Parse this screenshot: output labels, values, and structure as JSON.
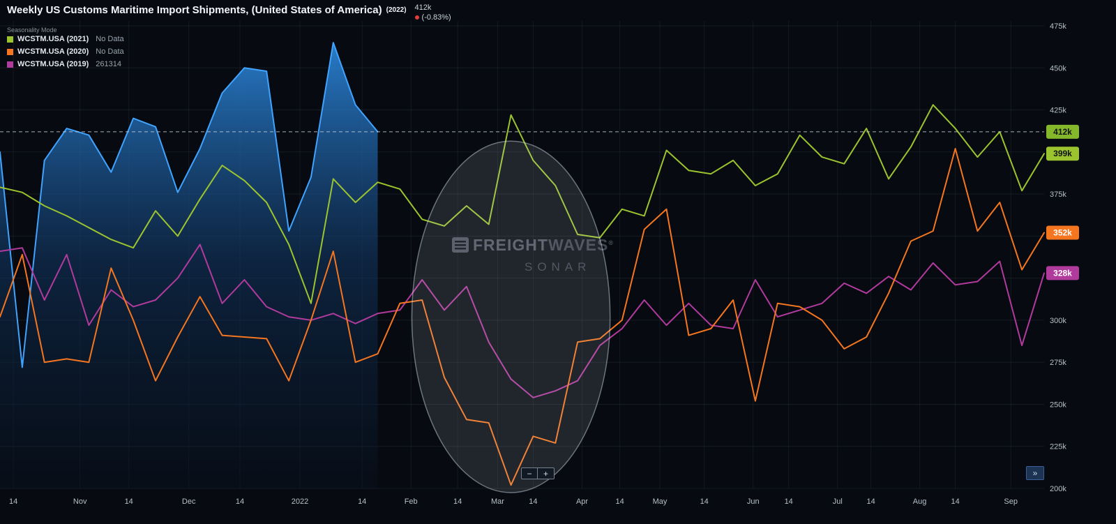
{
  "header": {
    "title": "Weekly US Customs Maritime Import Shipments, (United States of America)",
    "title_suffix": "(2022)",
    "value": "412k",
    "change": "(-0.83%)",
    "mode_label": "Seasonality Mode"
  },
  "legend": [
    {
      "name": "WCSTM.USA (2021)",
      "value": "No Data",
      "color": "#9cc42e"
    },
    {
      "name": "WCSTM.USA (2020)",
      "value": "No Data",
      "color": "#f5761f"
    },
    {
      "name": "WCSTM.USA (2019)",
      "value": "261314",
      "color": "#b13a9d"
    }
  ],
  "watermark": {
    "brand_bold": "FREIGHT",
    "brand_light": "WAVES",
    "trademark": "®",
    "sub": "SONAR"
  },
  "controls": {
    "zoom_out_label": "−",
    "zoom_in_label": "+",
    "expand_label": "»"
  },
  "chart_data": {
    "type": "line",
    "title": "Weekly US Customs Maritime Import Shipments, (United States of America)",
    "x_unit": "weeks (Oct 2021 - Sep 2022 season axis)",
    "x_points": 48,
    "ylim": [
      200,
      475
    ],
    "y_unit": "k shipments",
    "grid": true,
    "legend_position": "top-left",
    "y_grid": [
      200,
      225,
      250,
      275,
      300,
      325,
      350,
      375,
      400,
      425,
      450,
      475
    ],
    "y_tick_labels": [
      [
        475,
        "475k"
      ],
      [
        450,
        "450k"
      ],
      [
        425,
        "425k"
      ],
      [
        375,
        "375k"
      ],
      [
        300,
        "300k"
      ],
      [
        275,
        "275k"
      ],
      [
        250,
        "250k"
      ],
      [
        225,
        "225k"
      ],
      [
        200,
        "200k"
      ]
    ],
    "x_ticks": [
      [
        "14",
        0.6
      ],
      [
        "Nov",
        3.6
      ],
      [
        "14",
        5.8
      ],
      [
        "Dec",
        8.5
      ],
      [
        "14",
        10.8
      ],
      [
        "2022",
        13.5
      ],
      [
        "14",
        16.3
      ],
      [
        "Feb",
        18.5
      ],
      [
        "14",
        20.6
      ],
      [
        "Mar",
        22.4
      ],
      [
        "14",
        24.0
      ],
      [
        "Apr",
        26.2
      ],
      [
        "14",
        27.9
      ],
      [
        "May",
        29.7
      ],
      [
        "14",
        31.7
      ],
      [
        "Jun",
        33.9
      ],
      [
        "14",
        35.5
      ],
      [
        "Jul",
        37.7
      ],
      [
        "14",
        39.2
      ],
      [
        "Aug",
        41.4
      ],
      [
        "14",
        43.0
      ],
      [
        "Sep",
        45.5
      ]
    ],
    "dashed_line": {
      "value": 412,
      "label": "412k"
    },
    "badges": [
      {
        "value": 412,
        "label": "412k",
        "color": "#84b729",
        "text": "#101418"
      },
      {
        "value": 399,
        "label": "399k",
        "color": "#9cc42e",
        "text": "#101418"
      },
      {
        "value": 352,
        "label": "352k",
        "color": "#f5761f",
        "text": "#ffffff"
      },
      {
        "value": 328,
        "label": "328k",
        "color": "#b13a9d",
        "text": "#ffffff"
      }
    ],
    "series": [
      {
        "id": "2022",
        "name": "WCSTM.USA (2022)",
        "type": "area",
        "color": "#3fa3ff",
        "values": [
          400,
          272,
          395,
          414,
          410,
          388,
          420,
          415,
          376,
          402,
          435,
          450,
          448,
          353,
          385,
          465,
          428,
          412
        ]
      },
      {
        "id": "2019",
        "name": "WCSTM.USA (2019)",
        "type": "line",
        "color": "#b13a9d",
        "values": [
          341,
          343,
          312,
          339,
          297,
          318,
          308,
          312,
          325,
          345,
          310,
          324,
          308,
          302,
          300,
          304,
          298,
          304,
          306,
          324,
          306,
          320,
          287,
          265,
          254,
          258,
          264,
          285,
          295,
          312,
          297,
          310,
          297,
          295,
          324,
          302,
          306,
          310,
          322,
          316,
          326,
          318,
          334,
          321,
          323,
          335,
          285,
          328
        ]
      },
      {
        "id": "2020",
        "name": "WCSTM.USA (2020)",
        "type": "line",
        "color": "#f5761f",
        "values": [
          302,
          339,
          275,
          277,
          275,
          331,
          300,
          264,
          290,
          314,
          291,
          290,
          289,
          264,
          300,
          341,
          275,
          280,
          310,
          312,
          266,
          241,
          239,
          202,
          231,
          227,
          287,
          289,
          300,
          354,
          366,
          291,
          295,
          312,
          252,
          310,
          308,
          300,
          283,
          290,
          316,
          347,
          353,
          402,
          353,
          370,
          330,
          352
        ]
      },
      {
        "id": "2021",
        "name": "WCSTM.USA (2021)",
        "type": "line",
        "color": "#9cc42e",
        "values": [
          379,
          376,
          368,
          362,
          355,
          348,
          343,
          365,
          350,
          372,
          392,
          383,
          370,
          345,
          310,
          384,
          370,
          382,
          378,
          360,
          356,
          368,
          357,
          422,
          395,
          380,
          351,
          349,
          366,
          362,
          401,
          389,
          387,
          395,
          380,
          387,
          410,
          397,
          393,
          414,
          384,
          403,
          428,
          414,
          397,
          412,
          377,
          399
        ]
      }
    ],
    "highlight_ellipse": {
      "cx_week": 23,
      "cy_value": 302,
      "rx_weeks": 4.46,
      "ry_value": 104.5
    }
  }
}
